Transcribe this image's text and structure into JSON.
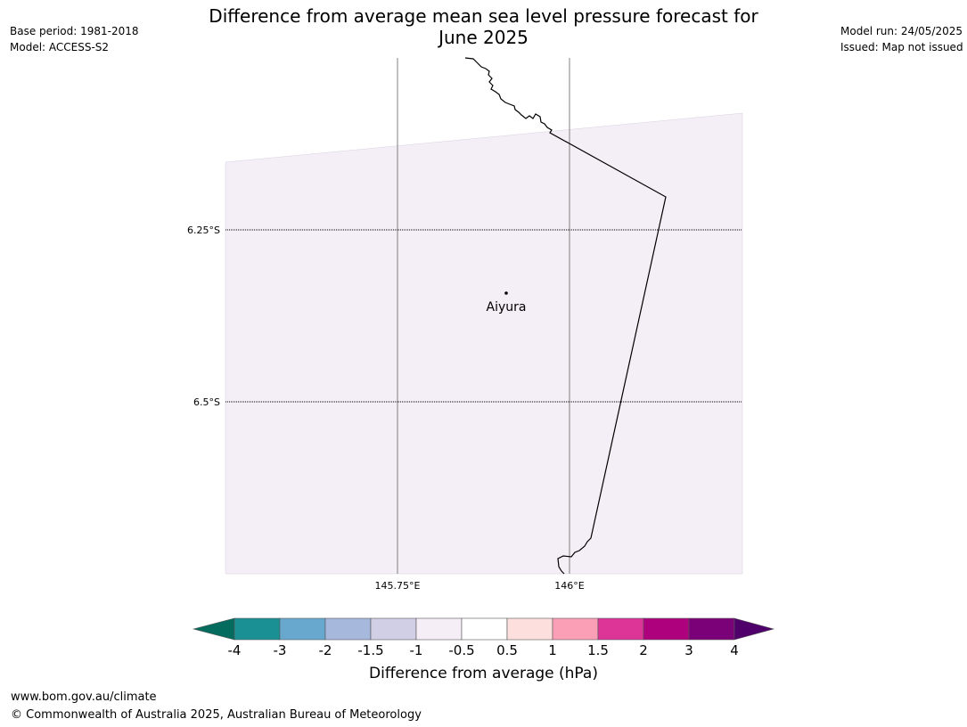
{
  "header": {
    "base_period": "Base period: 1981-2018",
    "model": "Model: ACCESS-S2",
    "model_run": "Model run: 24/05/2025",
    "issued": "Issued: Map not issued",
    "title_line1": "Difference from average mean sea level pressure forecast for",
    "title_line2": "June 2025"
  },
  "map": {
    "lat_labels": [
      "6.25°S",
      "6.5°S"
    ],
    "lon_labels": [
      "145.75°E",
      "146°E"
    ],
    "place": {
      "name": "Aiyura"
    },
    "fill_color": "#f4eef6",
    "coast_color": "#000000"
  },
  "colorbar": {
    "title": "Difference from average (hPa)",
    "tick_labels": [
      "-4",
      "-3",
      "-2",
      "-1.5",
      "-1",
      "-0.5",
      "0.5",
      "1",
      "1.5",
      "2",
      "3",
      "4"
    ],
    "under_color": "#046c5e",
    "over_color": "#4f006a",
    "colors": [
      "#1a9095",
      "#68a8cf",
      "#a6b8db",
      "#d1cfe6",
      "#f6eef7",
      "#ffffff",
      "#fde0dd",
      "#fa9fb5",
      "#dd3497",
      "#ae017e",
      "#7a0177"
    ]
  },
  "footer": {
    "url": "www.bom.gov.au/climate",
    "copyright": "© Commonwealth of Australia 2025, Australian Bureau of Meteorology"
  }
}
